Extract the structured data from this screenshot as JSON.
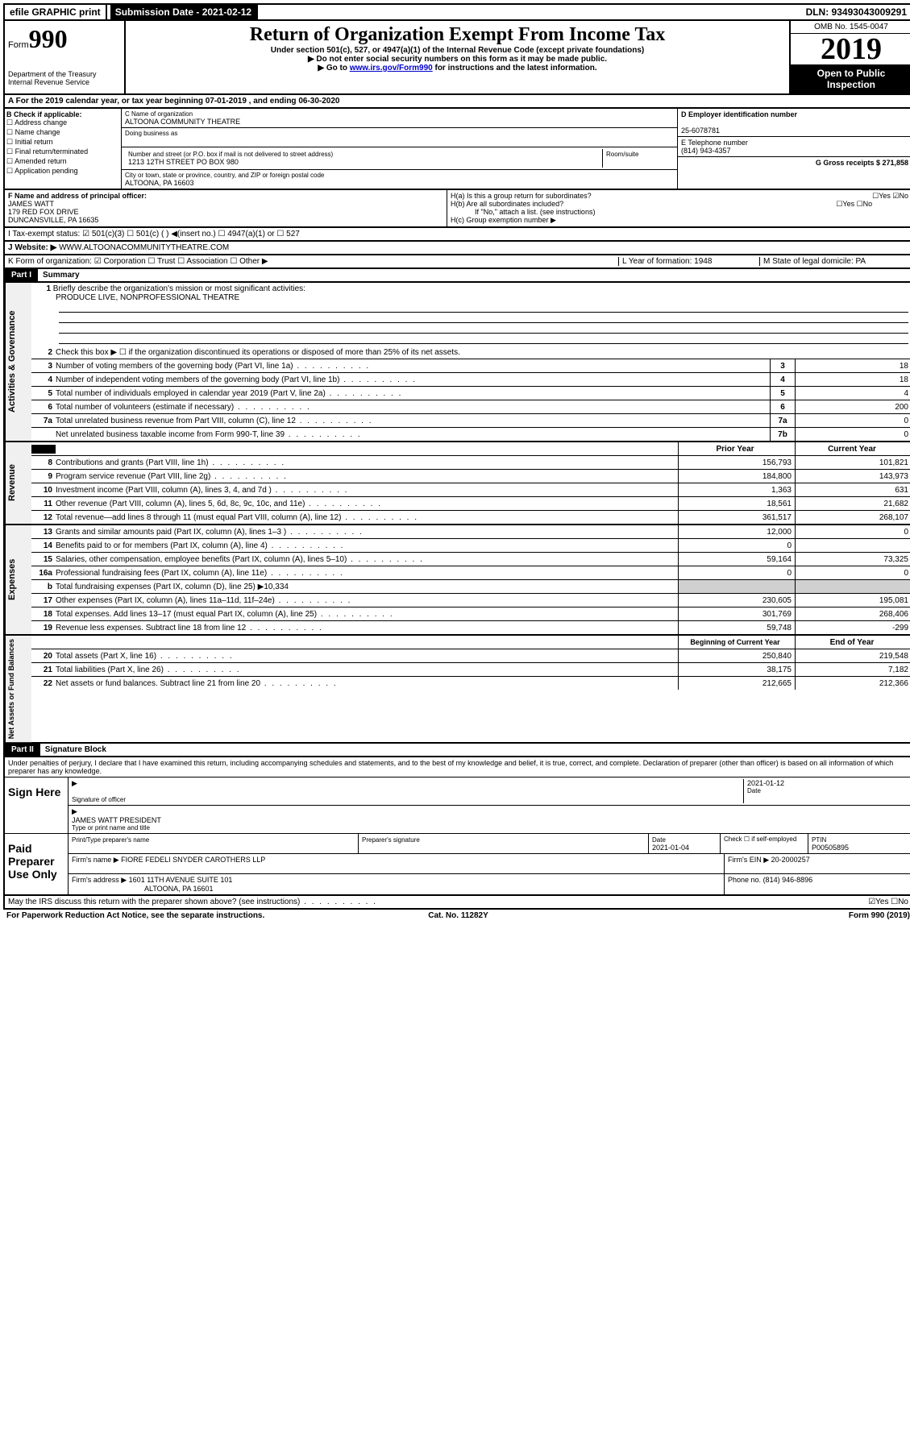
{
  "top_bar": {
    "efile": "efile GRAPHIC print",
    "submission_label": "Submission Date - 2021-02-12",
    "dln": "DLN: 93493043009291"
  },
  "header": {
    "form_label": "Form",
    "form_number": "990",
    "dept1": "Department of the Treasury",
    "dept2": "Internal Revenue Service",
    "title": "Return of Organization Exempt From Income Tax",
    "subtitle1": "Under section 501(c), 527, or 4947(a)(1) of the Internal Revenue Code (except private foundations)",
    "subtitle2": "▶ Do not enter social security numbers on this form as it may be made public.",
    "subtitle3_pre": "▶ Go to ",
    "subtitle3_link": "www.irs.gov/Form990",
    "subtitle3_post": " for instructions and the latest information.",
    "omb": "OMB No. 1545-0047",
    "year": "2019",
    "open": "Open to Public Inspection"
  },
  "row_a": "A For the 2019 calendar year, or tax year beginning 07-01-2019    , and ending 06-30-2020",
  "col_b": {
    "label": "B Check if applicable:",
    "opts": [
      "Address change",
      "Name change",
      "Initial return",
      "Final return/terminated",
      "Amended return",
      "Application pending"
    ]
  },
  "col_c": {
    "name_label": "C Name of organization",
    "name": "ALTOONA COMMUNITY THEATRE",
    "dba_label": "Doing business as",
    "addr_label": "Number and street (or P.O. box if mail is not delivered to street address)",
    "room_label": "Room/suite",
    "addr": "1213 12TH STREET PO BOX 980",
    "city_label": "City or town, state or province, country, and ZIP or foreign postal code",
    "city": "ALTOONA, PA  16603"
  },
  "col_d": {
    "ein_label": "D Employer identification number",
    "ein": "25-6078781",
    "phone_label": "E Telephone number",
    "phone": "(814) 943-4357",
    "gross_label": "G Gross receipts $ 271,858"
  },
  "row_f": {
    "label": "F Name and address of principal officer:",
    "name": "JAMES WATT",
    "addr1": "179 RED FOX DRIVE",
    "addr2": "DUNCANSVILLE, PA  16635"
  },
  "row_h": {
    "ha": "H(a)  Is this a group return for subordinates?",
    "ha_yn": "☐Yes ☑No",
    "hb": "H(b)  Are all subordinates included?",
    "hb_yn": "☐Yes ☐No",
    "hb_note": "If \"No,\" attach a list. (see instructions)",
    "hc": "H(c)  Group exemption number ▶"
  },
  "row_i": "I    Tax-exempt status:   ☑ 501(c)(3)   ☐ 501(c) (  ) ◀(insert no.)   ☐ 4947(a)(1) or   ☐ 527",
  "row_j_label": "J    Website: ▶ ",
  "row_j_val": "WWW.ALTOONACOMMUNITYTHEATRE.COM",
  "row_k": {
    "k": "K Form of organization:  ☑ Corporation  ☐ Trust  ☐ Association  ☐ Other ▶",
    "l": "L Year of formation: 1948",
    "m": "M State of legal domicile: PA"
  },
  "part1": {
    "header": "Part I",
    "title": "Summary"
  },
  "gov": {
    "label": "Activities & Governance",
    "l1": "Briefly describe the organization's mission or most significant activities:",
    "l1_val": "PRODUCE LIVE, NONPROFESSIONAL THEATRE",
    "l2": "Check this box ▶ ☐  if the organization discontinued its operations or disposed of more than 25% of its net assets.",
    "rows": [
      {
        "n": "3",
        "d": "Number of voting members of the governing body (Part VI, line 1a)",
        "b": "3",
        "v": "18"
      },
      {
        "n": "4",
        "d": "Number of independent voting members of the governing body (Part VI, line 1b)",
        "b": "4",
        "v": "18"
      },
      {
        "n": "5",
        "d": "Total number of individuals employed in calendar year 2019 (Part V, line 2a)",
        "b": "5",
        "v": "4"
      },
      {
        "n": "6",
        "d": "Total number of volunteers (estimate if necessary)",
        "b": "6",
        "v": "200"
      },
      {
        "n": "7a",
        "d": "Total unrelated business revenue from Part VIII, column (C), line 12",
        "b": "7a",
        "v": "0"
      },
      {
        "n": "",
        "d": "Net unrelated business taxable income from Form 990-T, line 39",
        "b": "7b",
        "v": "0"
      }
    ]
  },
  "rev": {
    "label": "Revenue",
    "head_prior": "Prior Year",
    "head_curr": "Current Year",
    "rows": [
      {
        "n": "8",
        "d": "Contributions and grants (Part VIII, line 1h)",
        "p": "156,793",
        "c": "101,821"
      },
      {
        "n": "9",
        "d": "Program service revenue (Part VIII, line 2g)",
        "p": "184,800",
        "c": "143,973"
      },
      {
        "n": "10",
        "d": "Investment income (Part VIII, column (A), lines 3, 4, and 7d )",
        "p": "1,363",
        "c": "631"
      },
      {
        "n": "11",
        "d": "Other revenue (Part VIII, column (A), lines 5, 6d, 8c, 9c, 10c, and 11e)",
        "p": "18,561",
        "c": "21,682"
      },
      {
        "n": "12",
        "d": "Total revenue—add lines 8 through 11 (must equal Part VIII, column (A), line 12)",
        "p": "361,517",
        "c": "268,107"
      }
    ]
  },
  "exp": {
    "label": "Expenses",
    "rows": [
      {
        "n": "13",
        "d": "Grants and similar amounts paid (Part IX, column (A), lines 1–3 )",
        "p": "12,000",
        "c": "0"
      },
      {
        "n": "14",
        "d": "Benefits paid to or for members (Part IX, column (A), line 4)",
        "p": "0",
        "c": ""
      },
      {
        "n": "15",
        "d": "Salaries, other compensation, employee benefits (Part IX, column (A), lines 5–10)",
        "p": "59,164",
        "c": "73,325"
      },
      {
        "n": "16a",
        "d": "Professional fundraising fees (Part IX, column (A), line 11e)",
        "p": "0",
        "c": "0"
      },
      {
        "n": "b",
        "d": "Total fundraising expenses (Part IX, column (D), line 25) ▶10,334",
        "p": "",
        "c": "",
        "shade": true
      },
      {
        "n": "17",
        "d": "Other expenses (Part IX, column (A), lines 11a–11d, 11f–24e)",
        "p": "230,605",
        "c": "195,081"
      },
      {
        "n": "18",
        "d": "Total expenses. Add lines 13–17 (must equal Part IX, column (A), line 25)",
        "p": "301,769",
        "c": "268,406"
      },
      {
        "n": "19",
        "d": "Revenue less expenses. Subtract line 18 from line 12",
        "p": "59,748",
        "c": "-299"
      }
    ]
  },
  "net": {
    "label": "Net Assets or Fund Balances",
    "head_prior": "Beginning of Current Year",
    "head_curr": "End of Year",
    "rows": [
      {
        "n": "20",
        "d": "Total assets (Part X, line 16)",
        "p": "250,840",
        "c": "219,548"
      },
      {
        "n": "21",
        "d": "Total liabilities (Part X, line 26)",
        "p": "38,175",
        "c": "7,182"
      },
      {
        "n": "22",
        "d": "Net assets or fund balances. Subtract line 21 from line 20",
        "p": "212,665",
        "c": "212,366"
      }
    ]
  },
  "part2": {
    "header": "Part II",
    "title": "Signature Block"
  },
  "perjury": "Under penalties of perjury, I declare that I have examined this return, including accompanying schedules and statements, and to the best of my knowledge and belief, it is true, correct, and complete. Declaration of preparer (other than officer) is based on all information of which preparer has any knowledge.",
  "sign": {
    "label": "Sign Here",
    "sig_label": "Signature of officer",
    "date": "2021-01-12",
    "date_label": "Date",
    "name": "JAMES WATT PRESIDENT",
    "name_label": "Type or print name and title"
  },
  "paid": {
    "label": "Paid Preparer Use Only",
    "h1": "Print/Type preparer's name",
    "h2": "Preparer's signature",
    "h3": "Date",
    "h3v": "2021-01-04",
    "h4": "Check ☐ if self-employed",
    "h5": "PTIN",
    "h5v": "P00505895",
    "firm_label": "Firm's name    ▶",
    "firm": "FIORE FEDELI SNYDER CAROTHERS LLP",
    "ein_label": "Firm's EIN ▶",
    "ein": "20-2000257",
    "addr_label": "Firm's address ▶",
    "addr1": "1601 11TH AVENUE SUITE 101",
    "addr2": "ALTOONA, PA  16601",
    "phone_label": "Phone no.",
    "phone": "(814) 946-8896"
  },
  "discuss": {
    "text": "May the IRS discuss this return with the preparer shown above? (see instructions)",
    "yn": "☑Yes  ☐No"
  },
  "footer": {
    "left": "For Paperwork Reduction Act Notice, see the separate instructions.",
    "mid": "Cat. No. 11282Y",
    "right": "Form 990 (2019)"
  }
}
